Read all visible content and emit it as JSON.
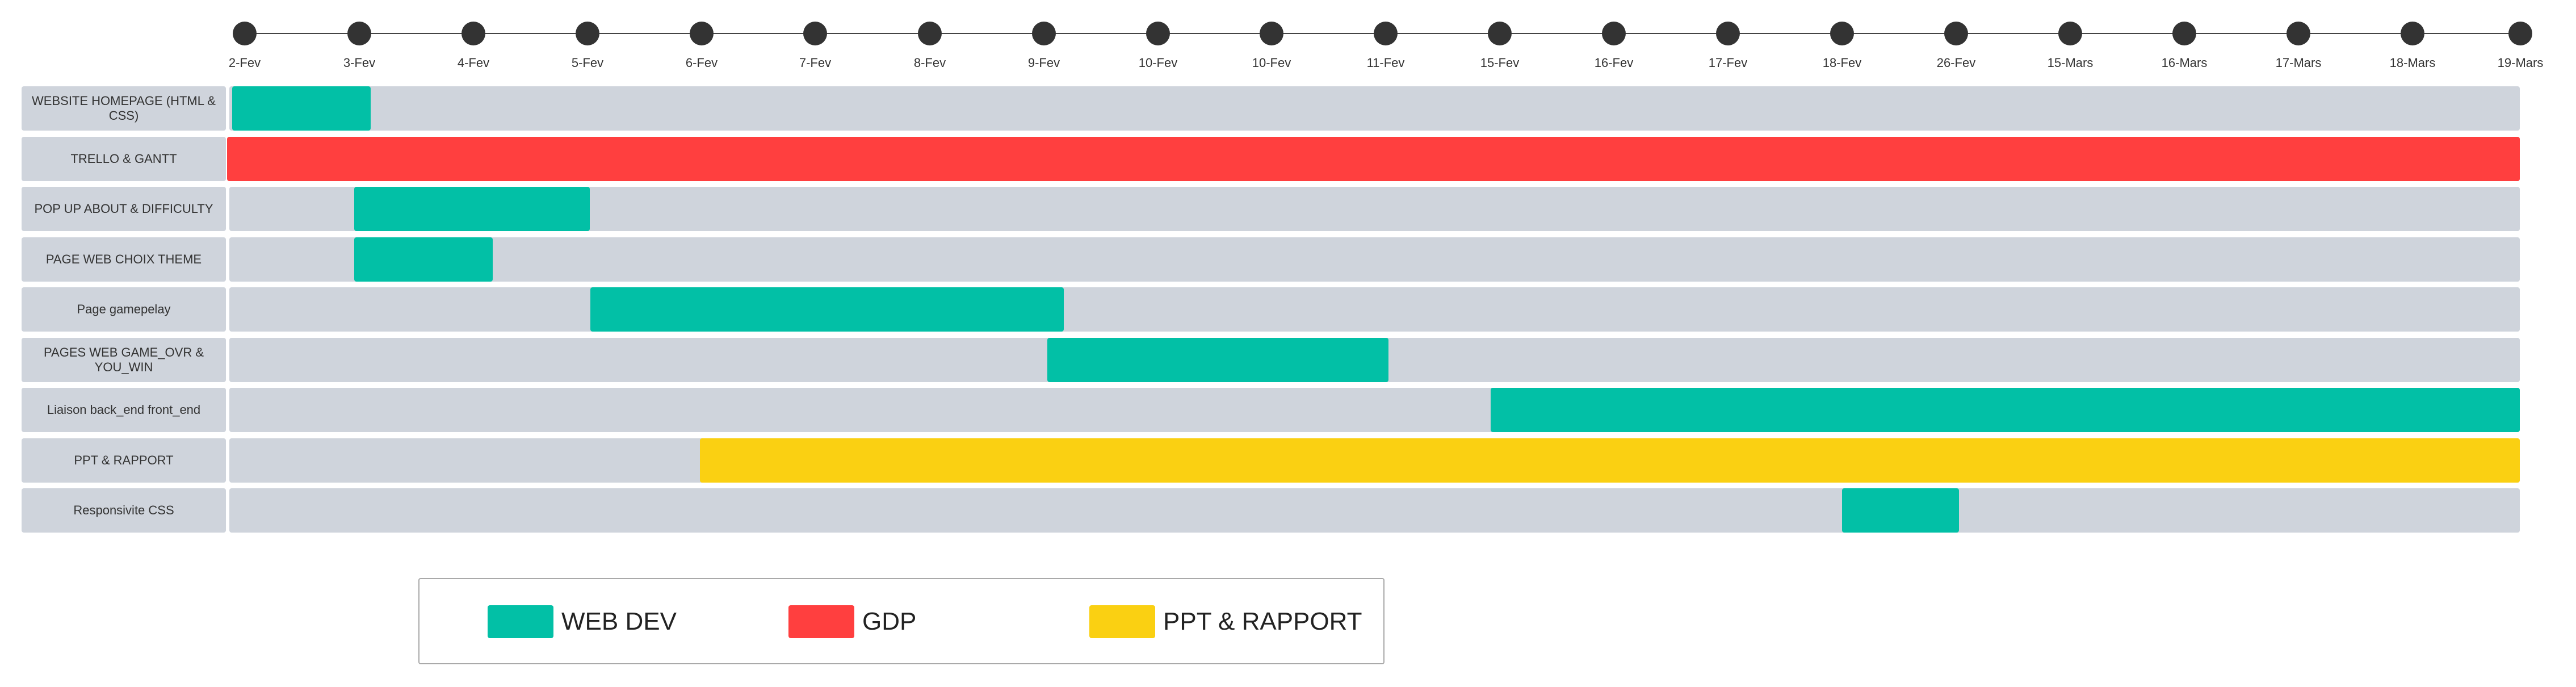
{
  "timeline": {
    "dates": [
      "2-Fev",
      "3-Fev",
      "4-Fev",
      "5-Fev",
      "6-Fev",
      "7-Fev",
      "8-Fev",
      "9-Fev",
      "10-Fev",
      "10-Fev",
      "11-Fev",
      "15-Fev",
      "16-Fev",
      "17-Fev",
      "18-Fev",
      "26-Fev",
      "15-Mars",
      "16-Mars",
      "17-Mars",
      "18-Mars",
      "19-Mars"
    ]
  },
  "categories": {
    "web_dev": {
      "label": "WEB DEV",
      "color": "#02c0a6"
    },
    "gdp": {
      "label": "GDP",
      "color": "#ff3f3f"
    },
    "ppt": {
      "label": "PPT & RAPPORT",
      "color": "#fad012"
    }
  },
  "tasks": [
    {
      "label": "WEBSITE HOMEPAGE (HTML & CSS)",
      "category": "web_dev",
      "start_date": "2-Fev",
      "end_date": "3-Fev"
    },
    {
      "label": "TRELLO & GANTT",
      "category": "gdp",
      "start_date": "2-Fev",
      "end_date": "19-Mars"
    },
    {
      "label": "POP UP ABOUT & DIFFICULTY",
      "category": "web_dev",
      "start_date": "3-Fev",
      "end_date": "5-Fev"
    },
    {
      "label": "PAGE WEB CHOIX THEME",
      "category": "web_dev",
      "start_date": "3-Fev",
      "end_date": "4-Fev"
    },
    {
      "label": "Page gamepelay",
      "category": "web_dev",
      "start_date": "5-Fev",
      "end_date": "9-Fev"
    },
    {
      "label": "PAGES WEB  GAME_OVR & YOU_WIN",
      "category": "web_dev",
      "start_date": "9-Fev",
      "end_date": "11-Fev"
    },
    {
      "label": "Liaison back_end front_end",
      "category": "web_dev",
      "start_date": "15-Fev",
      "end_date": "19-Mars"
    },
    {
      "label": "PPT & RAPPORT",
      "category": "ppt",
      "start_date": "6-Fev",
      "end_date": "19-Mars"
    },
    {
      "label": "Responsivite CSS",
      "category": "web_dev",
      "start_date": "18-Fev",
      "end_date": "26-Fev"
    }
  ],
  "legend": [
    {
      "label": "WEB DEV",
      "color": "#02c0a6"
    },
    {
      "label": "GDP",
      "color": "#ff3f3f"
    },
    {
      "label": "PPT & RAPPORT",
      "color": "#fad012"
    }
  ]
}
